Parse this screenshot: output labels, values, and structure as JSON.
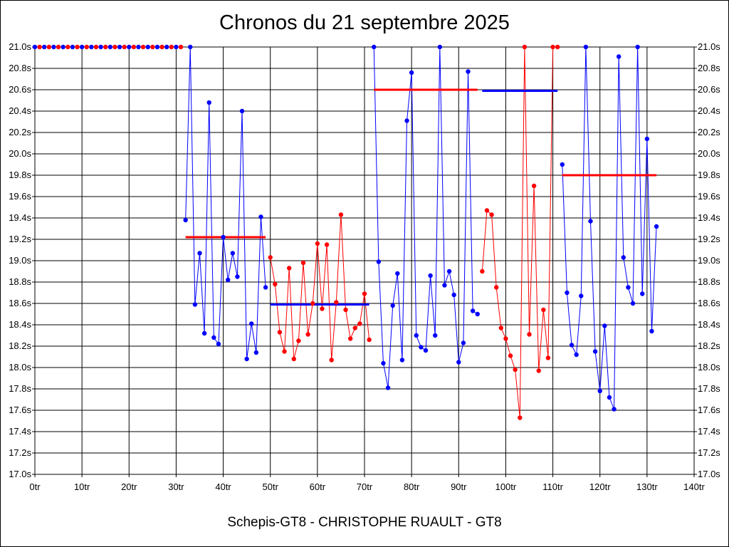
{
  "chart_data": {
    "type": "line",
    "title": "Chronos du 21 septembre 2025",
    "subtitle": "Schepis-GT8 - CHRISTOPHE RUAULT - GT8",
    "xlabel": "",
    "ylabel": "",
    "xlim": [
      0,
      140
    ],
    "ylim": [
      17.0,
      21.0
    ],
    "grid": true,
    "x_ticks": [
      0,
      10,
      20,
      30,
      40,
      50,
      60,
      70,
      80,
      90,
      100,
      110,
      120,
      130,
      140
    ],
    "x_tick_labels": [
      "0tr",
      "10tr",
      "20tr",
      "30tr",
      "40tr",
      "50tr",
      "60tr",
      "70tr",
      "80tr",
      "90tr",
      "100tr",
      "110tr",
      "120tr",
      "130tr",
      "140tr"
    ],
    "y_ticks": [
      17.0,
      17.2,
      17.4,
      17.6,
      17.8,
      18.0,
      18.2,
      18.4,
      18.6,
      18.8,
      19.0,
      19.2,
      19.4,
      19.6,
      19.8,
      20.0,
      20.2,
      20.4,
      20.6,
      20.8,
      21.0
    ],
    "y_tick_labels": [
      "17.0s",
      "17.2s",
      "17.4s",
      "17.6s",
      "17.8s",
      "18.0s",
      "18.2s",
      "18.4s",
      "18.6s",
      "18.8s",
      "19.0s",
      "19.2s",
      "19.4s",
      "19.6s",
      "19.8s",
      "20.0s",
      "20.2s",
      "20.4s",
      "20.6s",
      "20.8s",
      "21.0s"
    ],
    "colors": {
      "blue": "#0000ff",
      "red": "#ff0000",
      "grid": "#000000"
    },
    "series": [
      {
        "color": "#0000ff",
        "points": [
          [
            0,
            21.0
          ],
          [
            2,
            21.0
          ],
          [
            4,
            21.0
          ],
          [
            6,
            21.0
          ],
          [
            8,
            21.0
          ],
          [
            10,
            21.0
          ],
          [
            12,
            21.0
          ],
          [
            14,
            21.0
          ],
          [
            16,
            21.0
          ],
          [
            18,
            21.0
          ],
          [
            20,
            21.0
          ],
          [
            22,
            21.0
          ],
          [
            24,
            21.0
          ],
          [
            26,
            21.0
          ],
          [
            28,
            21.0
          ],
          [
            30,
            21.0
          ]
        ]
      },
      {
        "color": "#ff0000",
        "points": [
          [
            1,
            21.0
          ],
          [
            3,
            21.0
          ],
          [
            5,
            21.0
          ],
          [
            7,
            21.0
          ],
          [
            9,
            21.0
          ],
          [
            11,
            21.0
          ],
          [
            13,
            21.0
          ],
          [
            15,
            21.0
          ],
          [
            17,
            21.0
          ],
          [
            19,
            21.0
          ],
          [
            21,
            21.0
          ],
          [
            23,
            21.0
          ],
          [
            25,
            21.0
          ],
          [
            27,
            21.0
          ],
          [
            29,
            21.0
          ],
          [
            31,
            21.0
          ]
        ]
      },
      {
        "color": "#0000ff",
        "points": [
          [
            32,
            19.38
          ],
          [
            33,
            21.0
          ],
          [
            34,
            18.59
          ],
          [
            35,
            19.07
          ],
          [
            36,
            18.32
          ],
          [
            37,
            20.48
          ],
          [
            38,
            18.28
          ],
          [
            39,
            18.22
          ],
          [
            40,
            19.22
          ],
          [
            41,
            18.82
          ],
          [
            42,
            19.07
          ],
          [
            43,
            18.85
          ],
          [
            44,
            20.4
          ],
          [
            45,
            18.08
          ],
          [
            46,
            18.41
          ],
          [
            47,
            18.14
          ],
          [
            48,
            19.41
          ],
          [
            49,
            18.75
          ]
        ]
      },
      {
        "color": "#ff0000",
        "points": [
          [
            50,
            19.03
          ],
          [
            51,
            18.78
          ],
          [
            52,
            18.33
          ],
          [
            53,
            18.15
          ],
          [
            54,
            18.93
          ],
          [
            55,
            18.08
          ],
          [
            56,
            18.25
          ],
          [
            57,
            18.98
          ],
          [
            58,
            18.31
          ],
          [
            59,
            18.6
          ],
          [
            60,
            19.16
          ],
          [
            61,
            18.55
          ],
          [
            62,
            19.15
          ],
          [
            63,
            18.07
          ],
          [
            64,
            18.61
          ],
          [
            65,
            19.43
          ],
          [
            66,
            18.54
          ],
          [
            67,
            18.27
          ],
          [
            68,
            18.37
          ],
          [
            69,
            18.41
          ],
          [
            70,
            18.69
          ],
          [
            71,
            18.26
          ]
        ]
      },
      {
        "color": "#0000ff",
        "points": [
          [
            72,
            21.0
          ],
          [
            73,
            18.99
          ],
          [
            74,
            18.04
          ],
          [
            75,
            17.81
          ],
          [
            76,
            18.58
          ],
          [
            77,
            18.88
          ],
          [
            78,
            18.07
          ],
          [
            79,
            20.31
          ],
          [
            80,
            20.76
          ],
          [
            81,
            18.3
          ],
          [
            82,
            18.19
          ],
          [
            83,
            18.16
          ],
          [
            84,
            18.86
          ],
          [
            85,
            18.3
          ],
          [
            86,
            21.0
          ],
          [
            87,
            18.77
          ],
          [
            88,
            18.9
          ],
          [
            89,
            18.68
          ],
          [
            90,
            18.05
          ],
          [
            91,
            18.23
          ],
          [
            92,
            20.77
          ],
          [
            93,
            18.53
          ],
          [
            94,
            18.5
          ]
        ]
      },
      {
        "color": "#ff0000",
        "points": [
          [
            95,
            18.9
          ],
          [
            96,
            19.47
          ],
          [
            97,
            19.43
          ],
          [
            98,
            18.75
          ],
          [
            99,
            18.37
          ],
          [
            100,
            18.27
          ],
          [
            101,
            18.11
          ],
          [
            102,
            17.98
          ],
          [
            103,
            17.53
          ],
          [
            104,
            21.0
          ],
          [
            105,
            18.31
          ],
          [
            106,
            19.7
          ],
          [
            107,
            17.97
          ],
          [
            108,
            18.54
          ],
          [
            109,
            18.09
          ],
          [
            110,
            21.0
          ],
          [
            111,
            21.0
          ]
        ]
      },
      {
        "color": "#0000ff",
        "points": [
          [
            112,
            19.9
          ],
          [
            113,
            18.7
          ],
          [
            114,
            18.21
          ],
          [
            115,
            18.12
          ],
          [
            116,
            18.67
          ],
          [
            117,
            21.0
          ],
          [
            118,
            19.37
          ],
          [
            119,
            18.15
          ],
          [
            120,
            17.78
          ],
          [
            121,
            18.39
          ],
          [
            122,
            17.72
          ],
          [
            123,
            17.61
          ],
          [
            124,
            20.91
          ],
          [
            125,
            19.03
          ],
          [
            126,
            18.75
          ],
          [
            127,
            18.6
          ],
          [
            128,
            21.0
          ],
          [
            129,
            18.69
          ],
          [
            130,
            20.14
          ],
          [
            131,
            18.34
          ],
          [
            132,
            19.32
          ]
        ]
      }
    ],
    "averages": [
      {
        "color": "#ff0000",
        "x": [
          32,
          49
        ],
        "y": 19.22
      },
      {
        "color": "#0000ff",
        "x": [
          50,
          71
        ],
        "y": 18.59
      },
      {
        "color": "#ff0000",
        "x": [
          72,
          94
        ],
        "y": 20.6
      },
      {
        "color": "#0000ff",
        "x": [
          95,
          111
        ],
        "y": 20.59
      },
      {
        "color": "#ff0000",
        "x": [
          112,
          132
        ],
        "y": 19.8
      }
    ]
  }
}
